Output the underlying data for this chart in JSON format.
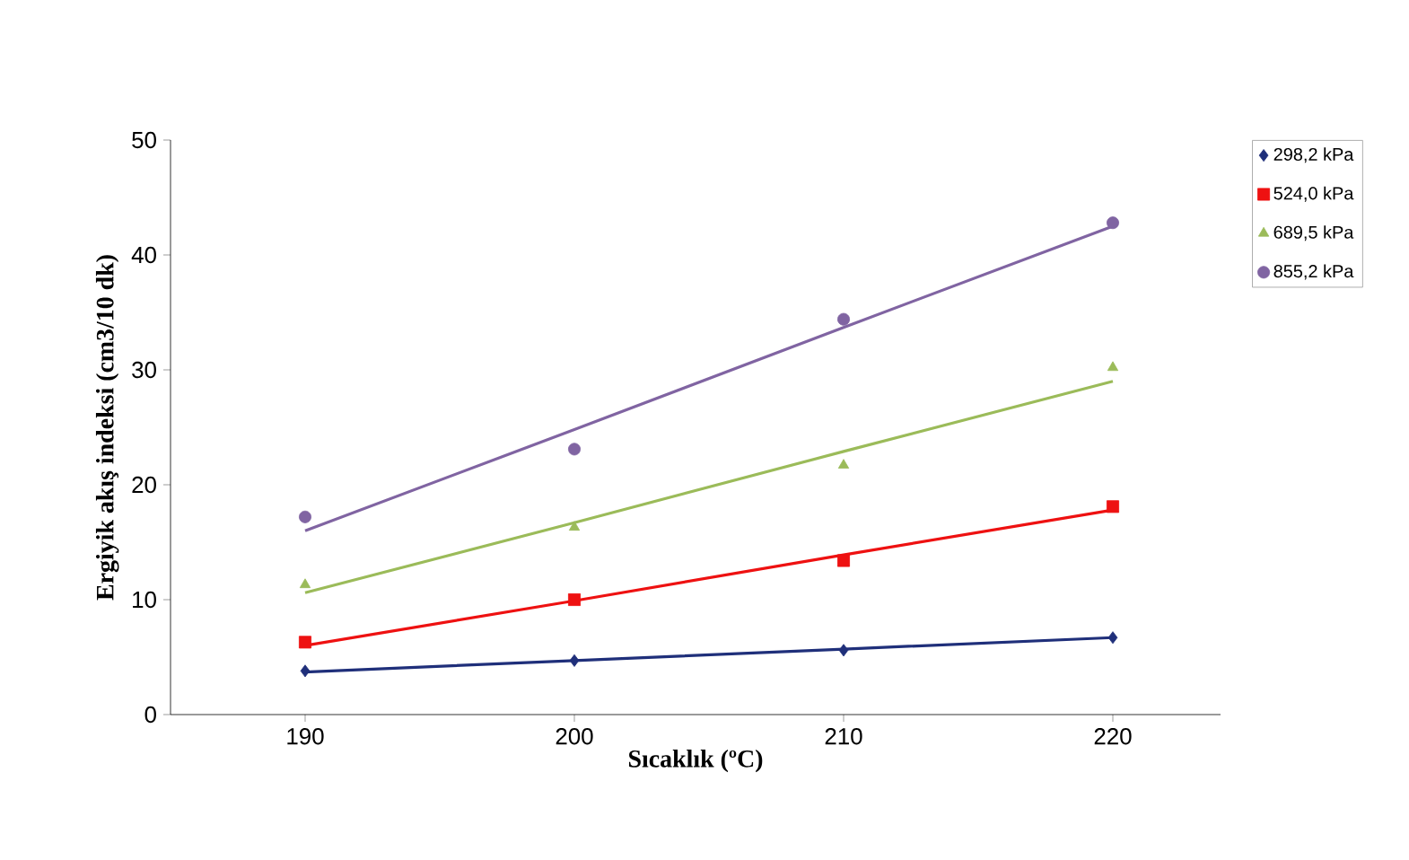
{
  "chart_data": {
    "type": "scatter",
    "xlabel": "Sıcaklık (ºC)",
    "ylabel": "Ergiyik akış indeksi (cm3/10 dk)",
    "x": [
      190,
      200,
      210,
      220
    ],
    "xlim": [
      185,
      224
    ],
    "xticks": [
      190,
      200,
      210,
      220
    ],
    "ylim": [
      0,
      50
    ],
    "yticks": [
      0,
      10,
      20,
      30,
      40,
      50
    ],
    "legend": "right",
    "grid": false,
    "series": [
      {
        "name": "298,2 kPa",
        "color": "#1f2f7a",
        "marker": "diamond",
        "values": [
          3.8,
          4.7,
          5.6,
          6.7
        ]
      },
      {
        "name": "524,0 kPa",
        "color": "#ee1111",
        "marker": "square",
        "values": [
          6.3,
          10.0,
          13.4,
          18.1
        ]
      },
      {
        "name": "689,5 kPa",
        "color": "#9bbb59",
        "marker": "triangle",
        "values": [
          11.3,
          16.3,
          21.7,
          30.2
        ]
      },
      {
        "name": "855,2 kPa",
        "color": "#8064a2",
        "marker": "circle",
        "values": [
          17.2,
          23.1,
          34.4,
          42.8
        ]
      },
      {
        "type": "line",
        "color": "#1f2f7a",
        "marker": "none",
        "line_style": "solid",
        "values": [
          3.7,
          4.7,
          5.7,
          6.7
        ]
      },
      {
        "type": "line",
        "color": "#ee1111",
        "marker": "none",
        "line_style": "solid",
        "values": [
          6.0,
          9.9,
          13.9,
          17.8
        ]
      },
      {
        "type": "line",
        "color": "#9bbb59",
        "marker": "none",
        "line_style": "solid",
        "values": [
          10.6,
          16.7,
          22.9,
          29.0
        ]
      },
      {
        "type": "line",
        "color": "#8064a2",
        "marker": "none",
        "line_style": "solid",
        "values": [
          16.0,
          24.8,
          33.7,
          42.5
        ]
      }
    ]
  }
}
